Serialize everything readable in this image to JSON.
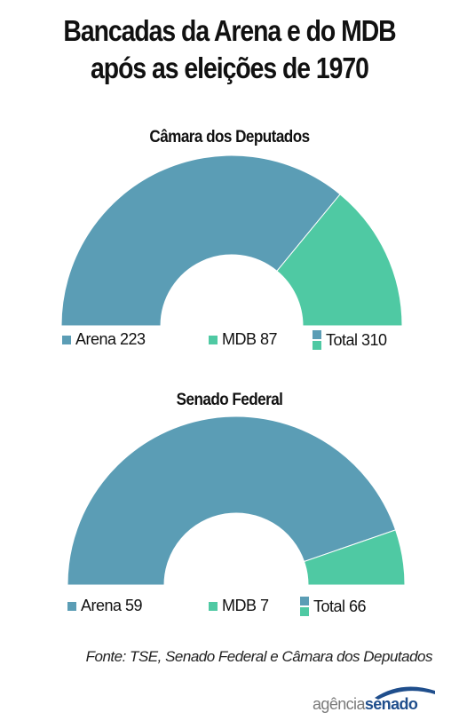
{
  "title": {
    "line1": "Bancadas da Arena e do MDB",
    "line2": "após as eleições de 1970"
  },
  "colors": {
    "arena": "#5b9db5",
    "mdb": "#4fc9a3",
    "divider": "#ffffff"
  },
  "chart_data": [
    {
      "type": "pie",
      "variant": "half-donut",
      "title": "Câmara dos Deputados",
      "categories": [
        "Arena",
        "MDB"
      ],
      "values": [
        223,
        87
      ],
      "total": 310,
      "legend": {
        "arena": "Arena 223",
        "mdb": "MDB 87",
        "total": "Total 310"
      }
    },
    {
      "type": "pie",
      "variant": "half-donut",
      "title": "Senado Federal",
      "categories": [
        "Arena",
        "MDB"
      ],
      "values": [
        59,
        7
      ],
      "total": 66,
      "legend": {
        "arena": "Arena 59",
        "mdb": "MDB 7",
        "total": "Total 66"
      }
    }
  ],
  "source": "Fonte: TSE, Senado Federal e Câmara dos Deputados",
  "logo": {
    "part1": "agência",
    "part2": "senado",
    "icon": "arc-swoosh-icon"
  }
}
